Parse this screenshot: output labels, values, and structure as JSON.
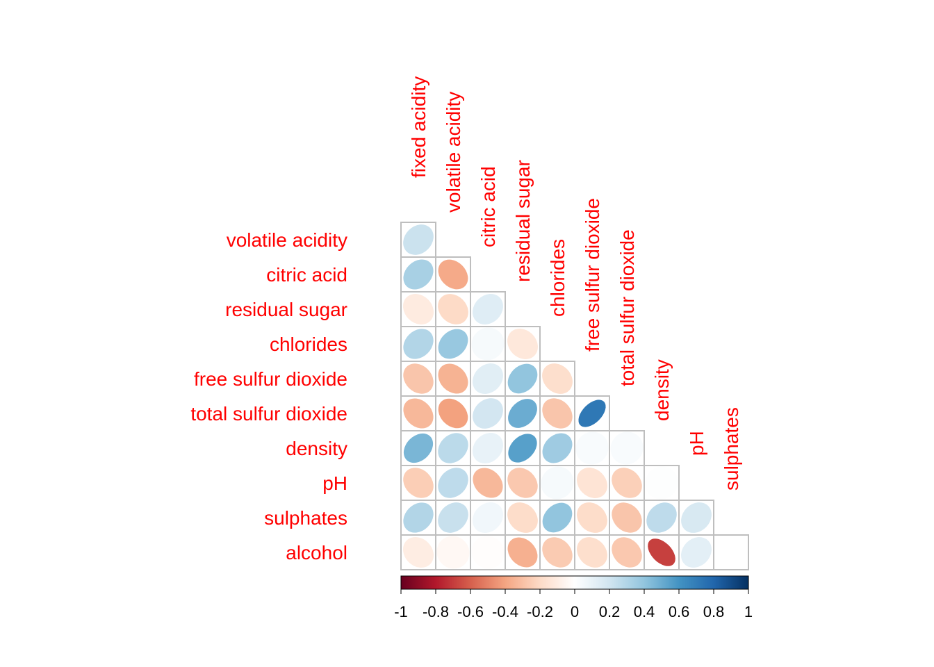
{
  "chart_data": {
    "type": "heatmap",
    "style": "ellipse",
    "shape": "lower-triangle",
    "variables": [
      "fixed acidity",
      "volatile acidity",
      "citric acid",
      "residual sugar",
      "chlorides",
      "free sulfur dioxide",
      "total sulfur dioxide",
      "density",
      "pH",
      "sulphates",
      "alcohol"
    ],
    "rows": [
      "volatile acidity",
      "citric acid",
      "residual sugar",
      "chlorides",
      "free sulfur dioxide",
      "total sulfur dioxide",
      "density",
      "pH",
      "sulphates",
      "alcohol"
    ],
    "columns": [
      "fixed acidity",
      "volatile acidity",
      "citric acid",
      "residual sugar",
      "chlorides",
      "free sulfur dioxide",
      "total sulfur dioxide",
      "density",
      "pH",
      "sulphates"
    ],
    "values": [
      [
        0.22
      ],
      [
        0.33,
        -0.38
      ],
      [
        -0.11,
        -0.2,
        0.14
      ],
      [
        0.3,
        0.38,
        0.04,
        -0.13
      ],
      [
        -0.28,
        -0.35,
        0.13,
        0.4,
        -0.18
      ],
      [
        -0.33,
        -0.41,
        0.19,
        0.5,
        -0.28,
        0.72
      ],
      [
        0.46,
        0.27,
        0.1,
        0.55,
        0.36,
        0.03,
        0.03
      ],
      [
        -0.25,
        0.26,
        -0.33,
        -0.27,
        0.04,
        -0.15,
        -0.24,
        0.01
      ],
      [
        0.3,
        0.23,
        0.06,
        -0.19,
        0.4,
        -0.19,
        -0.28,
        0.26,
        0.17
      ],
      [
        -0.1,
        -0.04,
        -0.01,
        -0.36,
        -0.26,
        -0.18,
        -0.27,
        -0.69,
        0.12,
        -0.0
      ]
    ],
    "colorbar": {
      "ticks": [
        "-1",
        "-0.8",
        "-0.6",
        "-0.4",
        "-0.2",
        "0",
        "0.2",
        "0.4",
        "0.6",
        "0.8",
        "1"
      ],
      "range": [
        -1,
        1
      ]
    },
    "colors": {
      "negative_strong": "#67001F",
      "neutral": "#FFFFFF",
      "positive_strong": "#053061",
      "label": "#FF0000",
      "cell_border": "#BEBEBE"
    }
  }
}
